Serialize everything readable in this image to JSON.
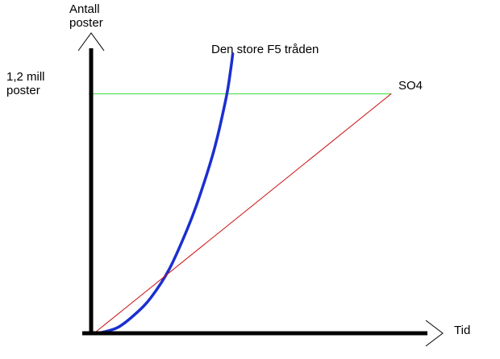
{
  "chart_data": {
    "type": "line",
    "title": "",
    "xlabel": "Tid",
    "ylabel": "Antall poster",
    "y_reference": {
      "label": "1,2 mill poster",
      "value": 1.2,
      "unit": "mill poster",
      "color": "#33dd33"
    },
    "xlim": [
      0,
      10
    ],
    "ylim": [
      0,
      1.4
    ],
    "grid": false,
    "legend": "none",
    "axis_color": "#000000",
    "series": [
      {
        "name": "Den store F5 tråden",
        "label_text": "Den store F5 tråden",
        "color": "#1a2fd0",
        "shape": "steep curve, rises sharply toward the 1,2 mill line",
        "x": [
          0.25,
          0.9,
          1.5,
          2.0,
          2.6,
          3.2,
          3.6,
          4.1,
          4.5,
          4.65,
          4.72
        ],
        "y": [
          0.0,
          0.03,
          0.1,
          0.18,
          0.32,
          0.52,
          0.68,
          0.92,
          1.18,
          1.32,
          1.4
        ]
      },
      {
        "name": "SO4",
        "label_text": "SO4",
        "color": "#cc1111",
        "shape": "straight line",
        "x": [
          0.1,
          10.0
        ],
        "y": [
          0.0,
          1.2
        ]
      }
    ]
  }
}
